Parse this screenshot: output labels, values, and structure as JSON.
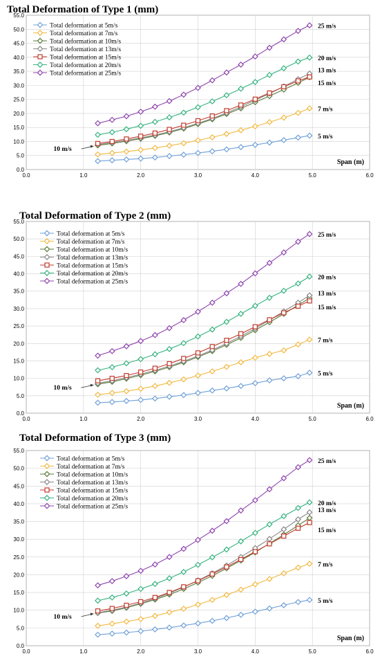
{
  "chart_data": [
    {
      "type": "line",
      "title": "Total Deformation of Type 1 (mm)",
      "xlabel": "Span (m)",
      "xlim": [
        0,
        6
      ],
      "xticks": [
        "0.0",
        "1.0",
        "2.0",
        "3.0",
        "4.0",
        "5.0",
        "6.0"
      ],
      "ylim": [
        0,
        55
      ],
      "yticks": [
        "0.0",
        "5.0",
        "10.0",
        "15.0",
        "20.0",
        "25.0",
        "30.0",
        "35.0",
        "40.0",
        "45.0",
        "50.0",
        "55.0"
      ],
      "grid": true,
      "legend": "top-left",
      "x": [
        1.25,
        1.5,
        1.75,
        2.0,
        2.25,
        2.5,
        2.75,
        3.0,
        3.25,
        3.5,
        3.75,
        4.0,
        4.25,
        4.5,
        4.75,
        4.95
      ],
      "series": [
        {
          "name": "Total deformation at 5m/s",
          "end_label": "5 m/s",
          "color": "#6fa0d8",
          "marker": "diamond",
          "values": [
            3.0,
            3.3,
            3.6,
            3.9,
            4.3,
            4.8,
            5.3,
            5.9,
            6.5,
            7.2,
            8.0,
            8.8,
            9.6,
            10.5,
            11.4,
            12.1
          ]
        },
        {
          "name": "Total deformation at 7m/s",
          "end_label": "7 m/s",
          "color": "#f2b840",
          "marker": "diamond",
          "values": [
            5.4,
            5.9,
            6.4,
            7.0,
            7.7,
            8.5,
            9.4,
            10.4,
            11.5,
            12.7,
            14.0,
            15.4,
            16.9,
            18.5,
            20.2,
            21.8
          ]
        },
        {
          "name": "Total deformation at 10m/s",
          "end_label": "10 m/s",
          "color": "#5a7a3a",
          "marker": "diamond",
          "values": [
            8.6,
            9.3,
            10.1,
            11.0,
            12.0,
            13.2,
            14.6,
            16.2,
            17.9,
            19.8,
            21.8,
            24.0,
            26.2,
            28.5,
            30.9,
            32.9
          ]
        },
        {
          "name": "Total deformation at 13m/s",
          "end_label": "13 m/s",
          "color": "#888888",
          "marker": "diamond",
          "values": [
            8.9,
            9.6,
            10.4,
            11.3,
            12.3,
            13.5,
            14.9,
            16.5,
            18.2,
            20.2,
            22.4,
            24.7,
            27.1,
            29.6,
            32.2,
            34.2
          ]
        },
        {
          "name": "Total deformation at 15m/s",
          "end_label": "15 m/s",
          "color": "#c0392b",
          "marker": "square",
          "values": [
            9.3,
            10.0,
            10.9,
            11.9,
            13.0,
            14.3,
            15.8,
            17.4,
            19.1,
            21.0,
            23.0,
            25.1,
            27.3,
            29.5,
            31.6,
            33.0
          ]
        },
        {
          "name": "Total deformation at 20m/s",
          "end_label": "20 m/s",
          "color": "#35b37e",
          "marker": "diamond",
          "values": [
            12.4,
            13.3,
            14.4,
            15.6,
            17.0,
            18.6,
            20.3,
            22.2,
            24.3,
            26.5,
            28.8,
            31.2,
            33.7,
            36.1,
            38.5,
            39.9
          ]
        },
        {
          "name": "Total deformation at 25m/s",
          "end_label": "25 m/s",
          "color": "#8e44ad",
          "marker": "diamond",
          "values": [
            16.5,
            17.7,
            19.0,
            20.6,
            22.4,
            24.4,
            26.7,
            29.1,
            31.8,
            34.6,
            37.4,
            40.3,
            43.4,
            46.4,
            49.4,
            51.4
          ]
        }
      ],
      "annotation": "10 m/s"
    },
    {
      "type": "line",
      "title": "Total Deformation of Type 2 (mm)",
      "xlabel": "Span (m)",
      "xlim": [
        0,
        6
      ],
      "xticks": [
        "0.0",
        "1.0",
        "2.0",
        "3.0",
        "4.0",
        "5.0",
        "6.0"
      ],
      "ylim": [
        0,
        55
      ],
      "yticks": [
        "0.0",
        "5.0",
        "10.0",
        "15.0",
        "20.0",
        "25.0",
        "30.0",
        "35.0",
        "40.0",
        "45.0",
        "50.0",
        "55.0"
      ],
      "grid": true,
      "legend": "top-left",
      "x": [
        1.25,
        1.5,
        1.75,
        2.0,
        2.25,
        2.5,
        2.75,
        3.0,
        3.25,
        3.5,
        3.75,
        4.0,
        4.25,
        4.5,
        4.75,
        4.95
      ],
      "series": [
        {
          "name": "Total deformation at 5m/s",
          "end_label": "5 m/s",
          "color": "#6fa0d8",
          "marker": "diamond",
          "values": [
            3.0,
            3.2,
            3.5,
            3.8,
            4.2,
            4.7,
            5.2,
            5.8,
            6.5,
            7.1,
            7.8,
            8.6,
            9.4,
            10.0,
            10.6,
            11.6
          ]
        },
        {
          "name": "Total deformation at 7m/s",
          "end_label": "7 m/s",
          "color": "#f2b840",
          "marker": "diamond",
          "values": [
            5.3,
            5.8,
            6.3,
            7.0,
            7.8,
            8.7,
            9.7,
            10.8,
            12.0,
            13.3,
            14.6,
            15.9,
            17.0,
            18.0,
            19.7,
            21.1
          ]
        },
        {
          "name": "Total deformation at 10m/s",
          "end_label": "10 m/s",
          "color": "#5a7a3a",
          "marker": "diamond",
          "values": [
            8.3,
            9.0,
            9.9,
            10.9,
            12.0,
            13.2,
            14.6,
            16.1,
            17.8,
            19.6,
            21.6,
            23.8,
            26.1,
            28.5,
            31.0,
            33.0
          ]
        },
        {
          "name": "Total deformation at 13m/s",
          "end_label": "13 m/s",
          "color": "#888888",
          "marker": "diamond",
          "values": [
            8.6,
            9.3,
            10.2,
            11.2,
            12.3,
            13.5,
            14.9,
            16.4,
            18.1,
            20.0,
            22.1,
            24.3,
            26.7,
            29.2,
            31.7,
            33.8
          ]
        },
        {
          "name": "Total deformation at 15m/s",
          "end_label": "15 m/s",
          "color": "#c0392b",
          "marker": "square",
          "values": [
            9.3,
            10.0,
            10.8,
            11.8,
            12.9,
            14.2,
            15.7,
            17.3,
            19.1,
            20.9,
            22.8,
            24.8,
            26.8,
            28.8,
            30.7,
            32.2
          ]
        },
        {
          "name": "Total deformation at 20m/s",
          "end_label": "20 m/s",
          "color": "#35b37e",
          "marker": "diamond",
          "values": [
            12.3,
            13.2,
            14.3,
            15.5,
            16.9,
            18.4,
            20.1,
            22.0,
            24.0,
            26.2,
            28.5,
            30.8,
            33.1,
            35.1,
            37.2,
            39.2
          ]
        },
        {
          "name": "Total deformation at 25m/s",
          "end_label": "25 m/s",
          "color": "#8e44ad",
          "marker": "diamond",
          "values": [
            16.5,
            17.8,
            19.2,
            20.7,
            22.4,
            24.4,
            26.7,
            29.1,
            31.7,
            34.4,
            37.1,
            40.1,
            43.1,
            46.1,
            49.2,
            51.4
          ]
        }
      ],
      "annotation": "10 m/s"
    },
    {
      "type": "line",
      "title": "Total Deformation of Type 3 (mm)",
      "xlabel": "Span (m)",
      "xlim": [
        0,
        6
      ],
      "xticks": [
        "0.0",
        "1.0",
        "2.0",
        "3.0",
        "4.0",
        "5.0",
        "6.0"
      ],
      "ylim": [
        0,
        55
      ],
      "yticks": [
        "0.0",
        "5.0",
        "10.0",
        "15.0",
        "20.0",
        "25.0",
        "30.0",
        "35.0",
        "40.0",
        "45.0",
        "50.0",
        "55.0"
      ],
      "grid": true,
      "legend": "top-left",
      "x": [
        1.25,
        1.5,
        1.75,
        2.0,
        2.25,
        2.5,
        2.75,
        3.0,
        3.25,
        3.5,
        3.75,
        4.0,
        4.25,
        4.5,
        4.75,
        4.95
      ],
      "series": [
        {
          "name": "Total deformation at 5m/s",
          "end_label": "5 m/s",
          "color": "#6fa0d8",
          "marker": "diamond",
          "values": [
            3.1,
            3.4,
            3.7,
            4.1,
            4.6,
            5.1,
            5.7,
            6.3,
            7.0,
            7.8,
            8.7,
            9.6,
            10.5,
            11.4,
            12.3,
            12.9
          ]
        },
        {
          "name": "Total deformation at 7m/s",
          "end_label": "7 m/s",
          "color": "#f2b840",
          "marker": "diamond",
          "values": [
            5.6,
            6.2,
            6.8,
            7.5,
            8.4,
            9.4,
            10.4,
            11.6,
            12.9,
            14.3,
            15.8,
            17.3,
            18.8,
            20.4,
            22.0,
            23.1
          ]
        },
        {
          "name": "Total deformation at 10m/s",
          "end_label": "10 m/s",
          "color": "#5a7a3a",
          "marker": "diamond",
          "values": [
            9.2,
            9.8,
            10.7,
            11.8,
            13.0,
            14.4,
            16.0,
            17.8,
            19.7,
            21.8,
            24.0,
            26.3,
            28.8,
            31.3,
            33.9,
            36.0
          ]
        },
        {
          "name": "Total deformation at 13m/s",
          "end_label": "13 m/s",
          "color": "#888888",
          "marker": "diamond",
          "values": [
            9.3,
            10.0,
            10.9,
            12.0,
            13.3,
            14.8,
            16.5,
            18.4,
            20.4,
            22.6,
            25.0,
            27.5,
            30.1,
            32.8,
            35.6,
            37.6
          ]
        },
        {
          "name": "Total deformation at 15m/s",
          "end_label": "15 m/s",
          "color": "#c0392b",
          "marker": "square",
          "values": [
            9.8,
            10.5,
            11.4,
            12.4,
            13.6,
            15.0,
            16.6,
            18.3,
            20.2,
            22.2,
            24.3,
            26.5,
            28.7,
            30.9,
            33.1,
            34.7
          ]
        },
        {
          "name": "Total deformation at 20m/s",
          "end_label": "20 m/s",
          "color": "#35b37e",
          "marker": "diamond",
          "values": [
            12.7,
            13.6,
            14.7,
            16.0,
            17.4,
            19.0,
            20.8,
            22.8,
            24.9,
            27.1,
            29.4,
            31.8,
            34.2,
            36.5,
            38.8,
            40.4
          ]
        },
        {
          "name": "Total deformation at 25m/s",
          "end_label": "25 m/s",
          "color": "#8e44ad",
          "marker": "diamond",
          "values": [
            17.0,
            18.2,
            19.6,
            21.1,
            22.9,
            25.0,
            27.3,
            29.8,
            32.4,
            35.1,
            38.1,
            41.0,
            44.1,
            47.2,
            50.3,
            52.3
          ]
        }
      ],
      "annotation": "10 m/s"
    }
  ]
}
